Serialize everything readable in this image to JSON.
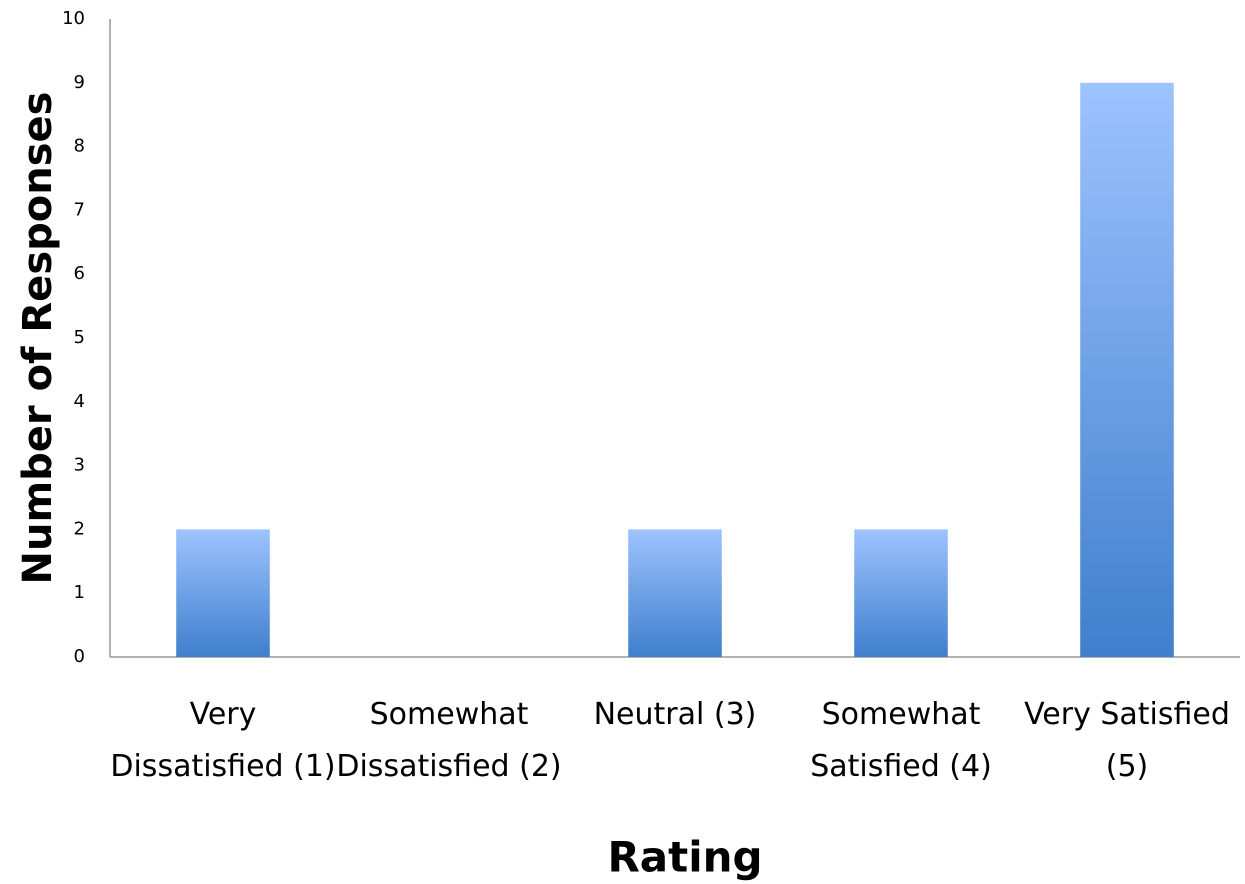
{
  "chart_data": {
    "type": "bar",
    "x_label": "Rating",
    "y_label": "Number of Responses",
    "categories": [
      "Very Dissatisfied (1)",
      "Somewhat Dissatisfied (2)",
      "Neutral (3)",
      "Somewhat Satisfied (4)",
      "Very Satisfied (5)"
    ],
    "values": [
      2,
      0,
      2,
      2,
      9
    ],
    "color": "#3f7fcc",
    "ylim": [
      0,
      10
    ],
    "yticks": [
      0,
      1,
      2,
      3,
      4,
      5,
      6,
      7,
      8,
      9,
      10
    ],
    "grid": false
  }
}
